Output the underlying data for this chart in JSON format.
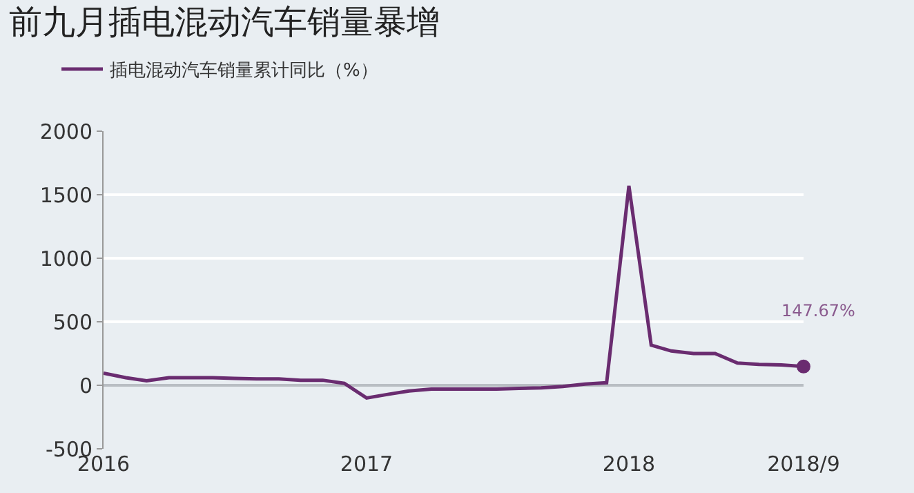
{
  "chart_data": {
    "type": "line",
    "title": "前九月插电混动汽车销量暴增",
    "x": [
      "2016-01",
      "2016-02",
      "2016-03",
      "2016-04",
      "2016-05",
      "2016-06",
      "2016-07",
      "2016-08",
      "2016-09",
      "2016-10",
      "2016-11",
      "2016-12",
      "2017-01",
      "2017-02",
      "2017-03",
      "2017-04",
      "2017-05",
      "2017-06",
      "2017-07",
      "2017-08",
      "2017-09",
      "2017-10",
      "2017-11",
      "2017-12",
      "2018-01",
      "2018-02",
      "2018-03",
      "2018-04",
      "2018-05",
      "2018-06",
      "2018-07",
      "2018-08",
      "2018-09"
    ],
    "series": [
      {
        "name": "插电混动汽车销量累计同比（%）",
        "color": "#6a2c70",
        "values": [
          95,
          60,
          35,
          60,
          60,
          60,
          55,
          50,
          50,
          40,
          40,
          15,
          -100,
          -70,
          -45,
          -30,
          -30,
          -30,
          -30,
          -25,
          -20,
          -10,
          10,
          20,
          1570,
          316,
          270,
          250,
          250,
          175,
          165,
          160,
          147.67
        ]
      }
    ],
    "xlim": [
      "2016-01",
      "2018-09"
    ],
    "xticks": [
      {
        "value": "2016-01",
        "label": "2016"
      },
      {
        "value": "2017-01",
        "label": "2017"
      },
      {
        "value": "2018-01",
        "label": "2018"
      },
      {
        "value": "2018-09",
        "label": "2018/9"
      }
    ],
    "ylim": [
      -500,
      2000
    ],
    "yticks": [
      -500,
      0,
      500,
      1000,
      1500,
      2000
    ],
    "grid": "y",
    "legend": "top left",
    "marker": "none",
    "line_style": "solid",
    "annotations": [
      {
        "text": "147.67%",
        "x": "2018-09",
        "y": 147.67
      }
    ]
  }
}
